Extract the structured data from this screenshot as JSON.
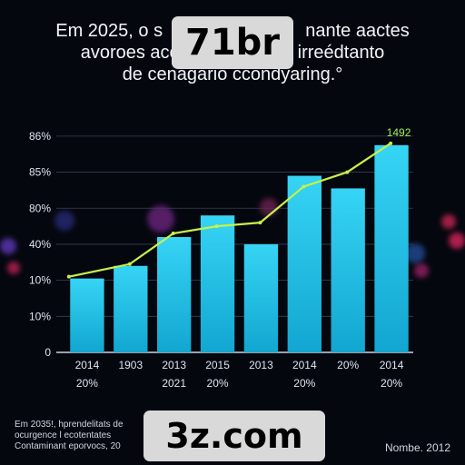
{
  "title_lines": [
    "Em 2025, o s",
    "nante aactes",
    "avoroes acc",
    "irreédtanto",
    "de cenaǵário ccondyaring.°"
  ],
  "watermarks": {
    "top": "71br",
    "bottom": "3z.com"
  },
  "footnote_lines": [
    "Em 2035!, hprendelitats de",
    "ocurgence l ecotentates",
    "Contaminant eporvocs, 20"
  ],
  "source": "Nombe. 2012",
  "chart_data": {
    "type": "bar",
    "y_tick_labels": [
      "0",
      "10%",
      "10%",
      "40%",
      "80%",
      "85%",
      "86%"
    ],
    "y_tick_values": [
      0,
      1,
      2,
      3,
      4,
      5,
      6
    ],
    "ylim": [
      0,
      6.3
    ],
    "categories": [
      [
        "2014",
        "20%"
      ],
      [
        "1903",
        ""
      ],
      [
        "2013",
        "2021"
      ],
      [
        "2015",
        "20%"
      ],
      [
        "2013",
        ""
      ],
      [
        "2014",
        "20%"
      ],
      [
        "20%",
        ""
      ],
      [
        "2014",
        "20%"
      ]
    ],
    "values": [
      2.05,
      2.4,
      3.2,
      3.8,
      3.0,
      4.9,
      4.55,
      5.75
    ],
    "line_values": [
      2.1,
      2.45,
      3.3,
      3.5,
      3.6,
      4.6,
      5.0,
      5.8
    ],
    "annotation": "1492",
    "grid": true,
    "colors": {
      "bar": "#18b4dc",
      "bar_top": "#36d4f5",
      "line": "#c8f04a",
      "annotation": "#9af35a",
      "axis": "#cdd3de"
    }
  }
}
